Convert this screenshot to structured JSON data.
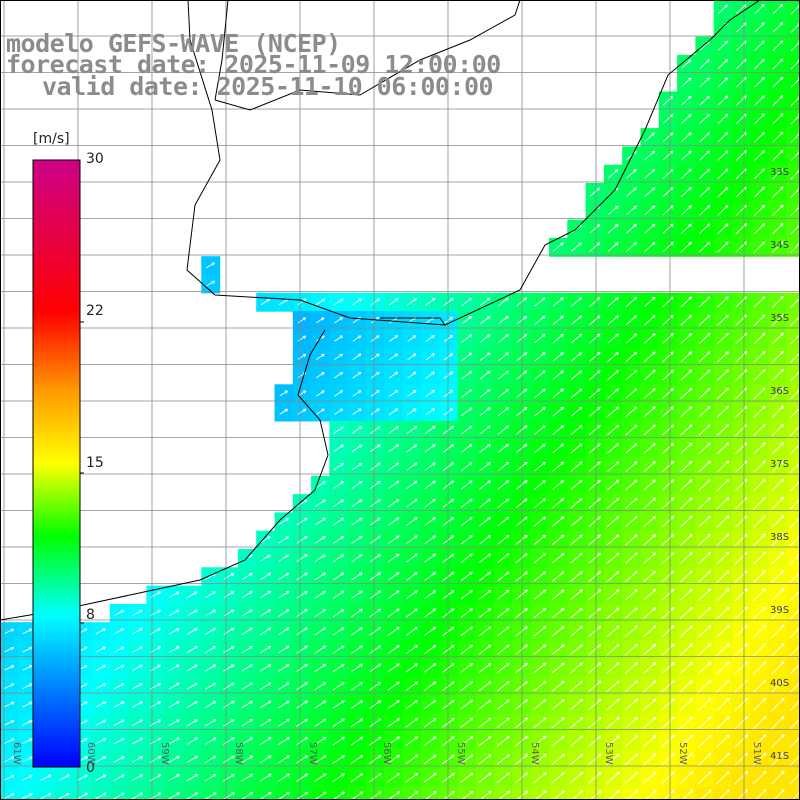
{
  "header": {
    "model_line": "modelo GEFS-WAVE (NCEP)",
    "forecast_line": "forecast date: 2025-11-09 12:00:00",
    "valid_line": "valid date: 2025-11-10 06:00:00"
  },
  "colorbar": {
    "unit": "[m/s]",
    "ticks": [
      "30",
      "22",
      "15",
      "8",
      "0"
    ],
    "range": [
      0,
      30
    ]
  },
  "map": {
    "lat_labels": [
      "33S",
      "34S",
      "35S",
      "36S",
      "37S",
      "38S",
      "39S",
      "40S",
      "41S"
    ],
    "lon_labels": [
      "61W",
      "60W",
      "59W",
      "58W",
      "57W",
      "56W",
      "55W",
      "54W",
      "53W",
      "52W",
      "51W"
    ],
    "field": "wind speed",
    "colors": {
      "land": "#ffffff",
      "grid": "#888888",
      "coast": "#000000",
      "arrows": "#ffffff"
    }
  }
}
